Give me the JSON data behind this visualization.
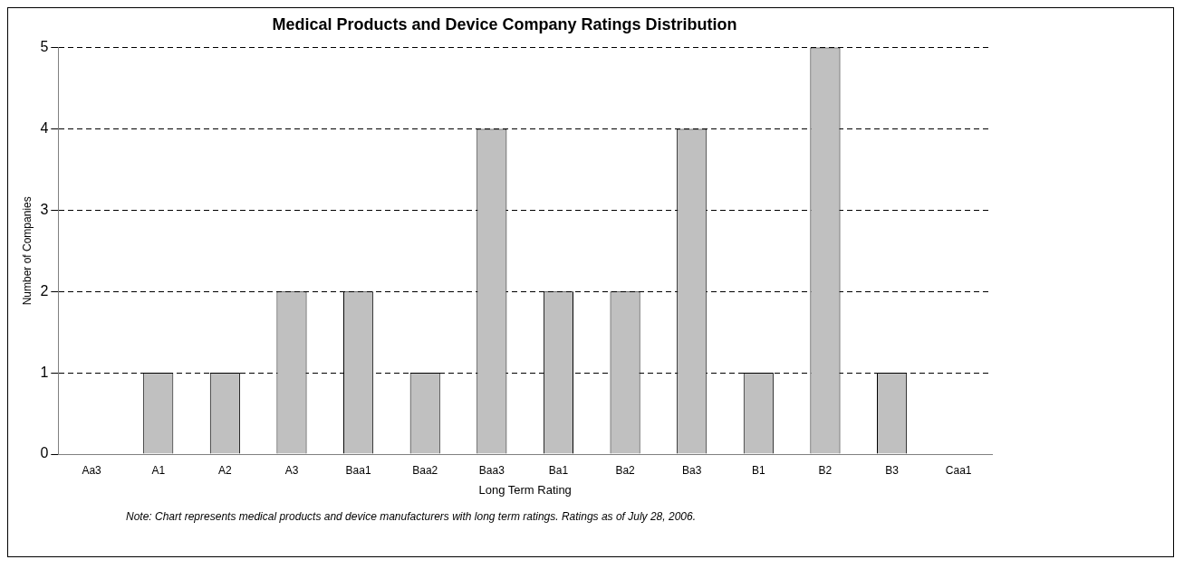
{
  "chart_data": {
    "type": "bar",
    "title": "Medical Products and Device Company Ratings Distribution",
    "xlabel": "Long Term Rating",
    "ylabel": "Number of Companies",
    "categories": [
      "Aa3",
      "A1",
      "A2",
      "A3",
      "Baa1",
      "Baa2",
      "Baa3",
      "Ba1",
      "Ba2",
      "Ba3",
      "B1",
      "B2",
      "B3",
      "Caa1"
    ],
    "values": [
      0,
      1,
      1,
      2,
      2,
      1,
      4,
      2,
      2,
      4,
      1,
      5,
      1,
      0
    ],
    "color": "#c0c0c0",
    "ylim": [
      0,
      5
    ],
    "yticks": [
      0,
      1,
      2,
      3,
      4,
      5
    ],
    "grid": "y",
    "line_style": "dashed",
    "legend": false,
    "annotations": [
      "Note: Chart represents medical products and device manufacturers with long term ratings. Ratings as of July 28, 2006."
    ]
  }
}
